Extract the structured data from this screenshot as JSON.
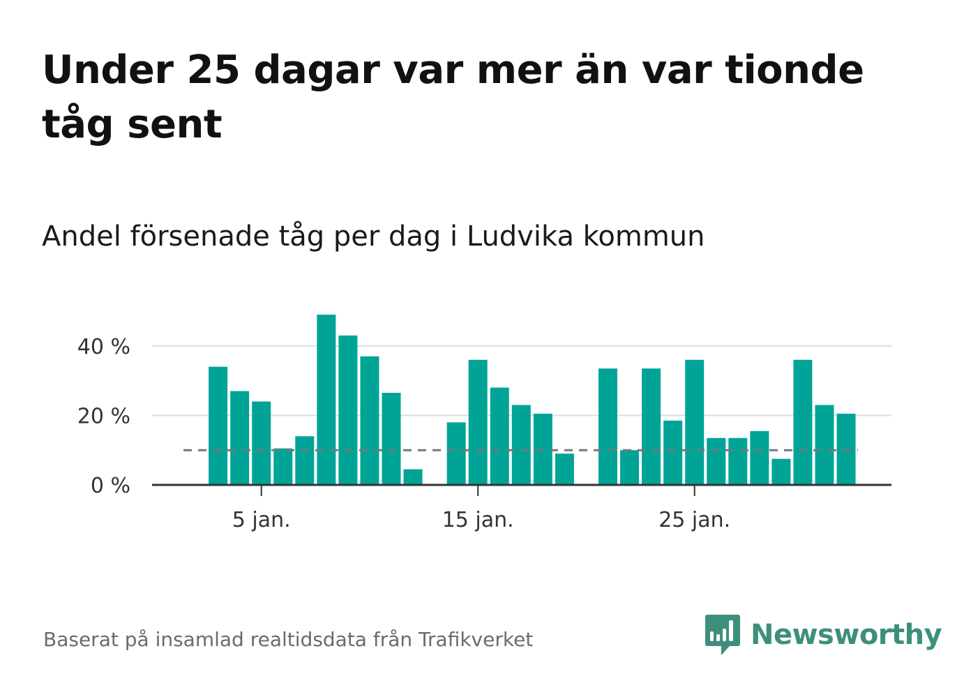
{
  "title": "Under 25 dagar var mer än var tionde tåg sent",
  "subtitle": "Andel försenade tåg per dag i Ludvika kommun",
  "footer": "Baserat på insamlad realtidsdata från Trafikverket",
  "logo": {
    "text": "Newsworthy",
    "icon": "bar-chart-speech-bubble-icon"
  },
  "colors": {
    "bar": "#00a497",
    "reference_line": "#777777",
    "grid": "#dddddd",
    "axis": "#333333",
    "logo": "#3d8f7c"
  },
  "chart_data": {
    "type": "bar",
    "title": "",
    "xlabel": "",
    "ylabel": "",
    "ylim": [
      0,
      48
    ],
    "y_ticks": [
      0,
      20,
      40
    ],
    "y_tick_labels": [
      "0 %",
      "20 %",
      "40 %"
    ],
    "x_ticks": [
      5,
      15,
      25
    ],
    "x_tick_labels": [
      "5 jan.",
      "15 jan.",
      "25 jan."
    ],
    "grid": true,
    "unit": "%",
    "reference_line": 10,
    "days": [
      3,
      4,
      5,
      6,
      7,
      8,
      9,
      10,
      11,
      12,
      14,
      15,
      16,
      17,
      18,
      19,
      21,
      22,
      23,
      24,
      25,
      26,
      27,
      28,
      29,
      30,
      31,
      32
    ],
    "values": [
      34,
      27,
      24,
      10.5,
      14,
      49,
      43,
      37,
      26.5,
      4.5,
      18,
      36,
      28,
      23,
      20.5,
      9,
      33.5,
      10,
      33.5,
      18.5,
      36,
      13.5,
      13.5,
      15.5,
      7.5,
      36,
      23,
      20.5
    ]
  }
}
